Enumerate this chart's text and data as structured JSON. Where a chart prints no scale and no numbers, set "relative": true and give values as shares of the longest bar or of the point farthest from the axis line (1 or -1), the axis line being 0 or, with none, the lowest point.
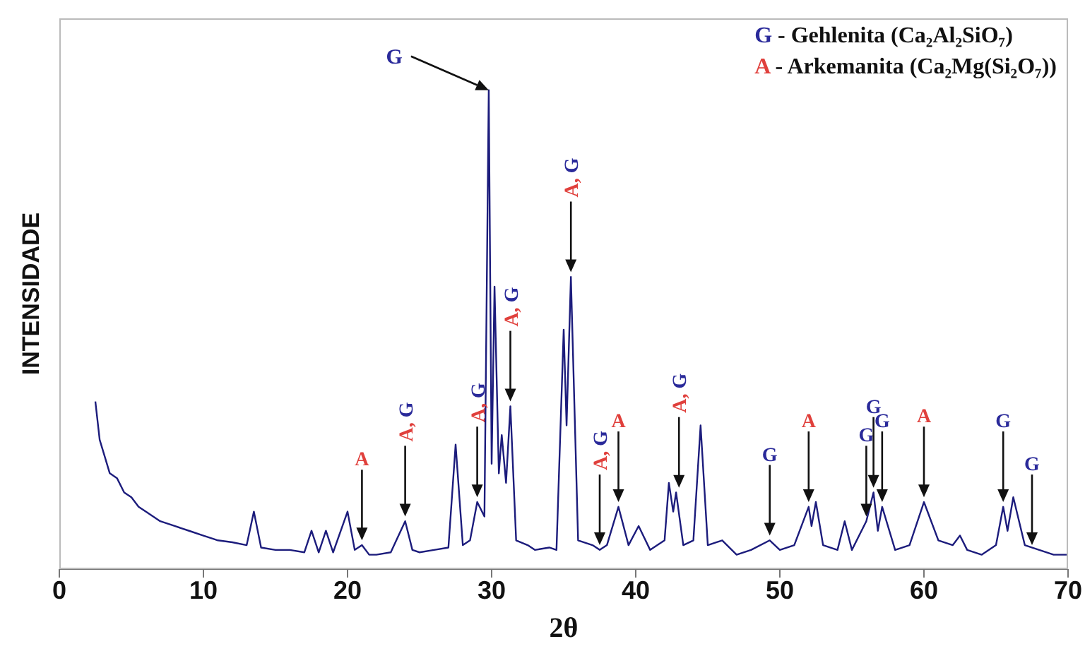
{
  "chart_data": {
    "type": "line",
    "relative": true,
    "xlabel": "2θ",
    "ylabel": "INTENSIDADE",
    "xlim": [
      0,
      70
    ],
    "xticks": [
      0,
      10,
      20,
      30,
      40,
      50,
      60,
      70
    ],
    "tick_labels": "x",
    "grid": false,
    "legend": false,
    "marker": "none",
    "line_style": "solid",
    "color": "#1c1c7c",
    "x": [
      2.5,
      2.8,
      3.1,
      3.5,
      4,
      4.5,
      5,
      5.5,
      6,
      7,
      8,
      9,
      10,
      11,
      12,
      13,
      13.5,
      14,
      15,
      16,
      17,
      17.5,
      18,
      18.5,
      19,
      20,
      20.5,
      21,
      21.5,
      22,
      23,
      24,
      24.5,
      25,
      26,
      27,
      27.5,
      28,
      28.5,
      29,
      29.5,
      29.8,
      30,
      30.2,
      30.5,
      30.7,
      31,
      31.3,
      31.7,
      32.5,
      33,
      34,
      34.5,
      35,
      35.2,
      35.5,
      36,
      37,
      37.5,
      38,
      38.8,
      39.5,
      40.2,
      41,
      42,
      42.3,
      42.6,
      42.8,
      43.3,
      44,
      44.5,
      45,
      46,
      47,
      48,
      49.3,
      50,
      51,
      52,
      52.2,
      52.5,
      53,
      54,
      54.5,
      55,
      56,
      56.5,
      56.8,
      57.1,
      58,
      59,
      60,
      61,
      62,
      62.5,
      63,
      64,
      65,
      65.5,
      65.8,
      66.2,
      67,
      68,
      69,
      70
    ],
    "values": [
      0.35,
      0.27,
      0.24,
      0.2,
      0.19,
      0.16,
      0.15,
      0.13,
      0.12,
      0.1,
      0.09,
      0.08,
      0.07,
      0.06,
      0.056,
      0.05,
      0.12,
      0.045,
      0.04,
      0.04,
      0.035,
      0.08,
      0.035,
      0.08,
      0.035,
      0.12,
      0.04,
      0.05,
      0.03,
      0.03,
      0.035,
      0.1,
      0.04,
      0.035,
      0.04,
      0.045,
      0.26,
      0.05,
      0.06,
      0.14,
      0.11,
      1.0,
      0.22,
      0.59,
      0.2,
      0.28,
      0.18,
      0.34,
      0.06,
      0.05,
      0.04,
      0.045,
      0.04,
      0.5,
      0.3,
      0.61,
      0.06,
      0.05,
      0.04,
      0.05,
      0.13,
      0.05,
      0.09,
      0.04,
      0.06,
      0.18,
      0.12,
      0.16,
      0.05,
      0.06,
      0.3,
      0.05,
      0.06,
      0.03,
      0.04,
      0.06,
      0.04,
      0.05,
      0.13,
      0.09,
      0.14,
      0.05,
      0.04,
      0.1,
      0.04,
      0.1,
      0.16,
      0.08,
      0.13,
      0.04,
      0.05,
      0.14,
      0.06,
      0.05,
      0.07,
      0.04,
      0.03,
      0.05,
      0.13,
      0.08,
      0.15,
      0.05,
      0.04,
      0.03,
      0.03
    ],
    "annotations": [
      "G - Gehlenita (Ca₂Al₂SiO₇)",
      "A - Arkemanita (Ca₂Mg(Si₂O₇))",
      {
        "text": "A",
        "x": 21,
        "y": 0.06
      },
      {
        "text": "A, G",
        "x": 24,
        "y": 0.11
      },
      {
        "text": "A, G",
        "x": 29,
        "y": 0.15
      },
      {
        "text": "G",
        "x": 29.8,
        "y": 1.0
      },
      {
        "text": "A, G",
        "x": 31.3,
        "y": 0.35
      },
      {
        "text": "A, G",
        "x": 35.5,
        "y": 0.62
      },
      {
        "text": "A, G",
        "x": 37.5,
        "y": 0.05
      },
      {
        "text": "A",
        "x": 38.8,
        "y": 0.14
      },
      {
        "text": "A, G",
        "x": 43,
        "y": 0.17
      },
      {
        "text": "G",
        "x": 49.3,
        "y": 0.07
      },
      {
        "text": "A",
        "x": 52,
        "y": 0.14
      },
      {
        "text": "G",
        "x": 56,
        "y": 0.11
      },
      {
        "text": "G",
        "x": 56.5,
        "y": 0.17
      },
      {
        "text": "G",
        "x": 57.1,
        "y": 0.14
      },
      {
        "text": "A",
        "x": 60,
        "y": 0.15
      },
      {
        "text": "G",
        "x": 65.5,
        "y": 0.14
      },
      {
        "text": "G",
        "x": 67.5,
        "y": 0.05
      }
    ]
  }
}
